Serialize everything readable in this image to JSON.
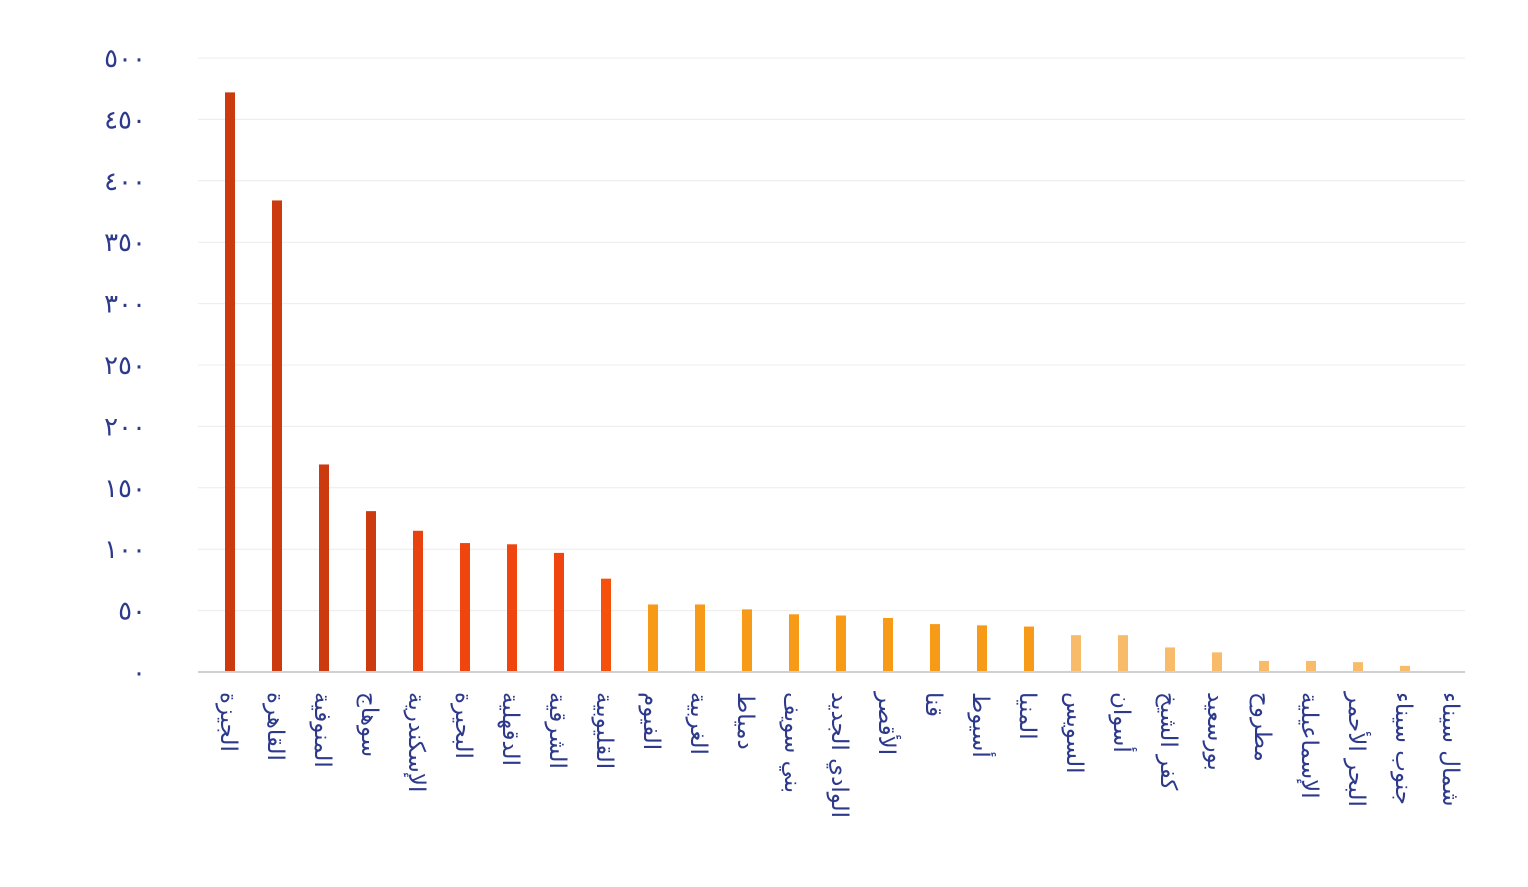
{
  "chart_data": {
    "type": "bar",
    "title": "",
    "xlabel": "",
    "ylabel": "",
    "ylim": [
      0,
      500
    ],
    "yticks": [
      0,
      50,
      100,
      150,
      200,
      250,
      300,
      350,
      400,
      450,
      500
    ],
    "ytick_labels": [
      "٠",
      "٥٠",
      "١٠٠",
      "١٥٠",
      "٢٠٠",
      "٢٥٠",
      "٣٠٠",
      "٣٥٠",
      "٤٠٠",
      "٤٥٠",
      "٥٠٠"
    ],
    "grid": true,
    "categories": [
      "الجيزة",
      "القاهرة",
      "المنوفية",
      "سوهاج",
      "الإسكندرية",
      "البحيرة",
      "الدقهلية",
      "الشرقية",
      "القليوبية",
      "الفيوم",
      "الغربية",
      "دمياط",
      "بني سويف",
      "الوادي الجديد",
      "الأقصر",
      "قنا",
      "أسيوط",
      "المنيا",
      "السويس",
      "أسوان",
      "كفر الشيخ",
      "بورسعيد",
      "مطروح",
      "الإسماعيلية",
      "البحر الأحمر",
      "جنوب سيناء",
      "شمال سيناء"
    ],
    "values": [
      472,
      384,
      169,
      131,
      115,
      105,
      104,
      97,
      76,
      55,
      55,
      51,
      47,
      46,
      44,
      39,
      38,
      37,
      30,
      30,
      20,
      16,
      9,
      9,
      8,
      5,
      0
    ],
    "colors": [
      "#cc3a10",
      "#cc3a10",
      "#cc3a10",
      "#cc3a10",
      "#e8430f",
      "#f0450e",
      "#f0450e",
      "#f0450e",
      "#f5500c",
      "#f79a18",
      "#f79a18",
      "#f79a18",
      "#f79a18",
      "#f79a18",
      "#f79a18",
      "#f79a18",
      "#f79a18",
      "#f79a18",
      "#f8bb6a",
      "#f8bb6a",
      "#f8bb6a",
      "#f8bb6a",
      "#f8bb6a",
      "#f8bb6a",
      "#f8bb6a",
      "#f8bb6a",
      "#f8bb6a"
    ]
  }
}
